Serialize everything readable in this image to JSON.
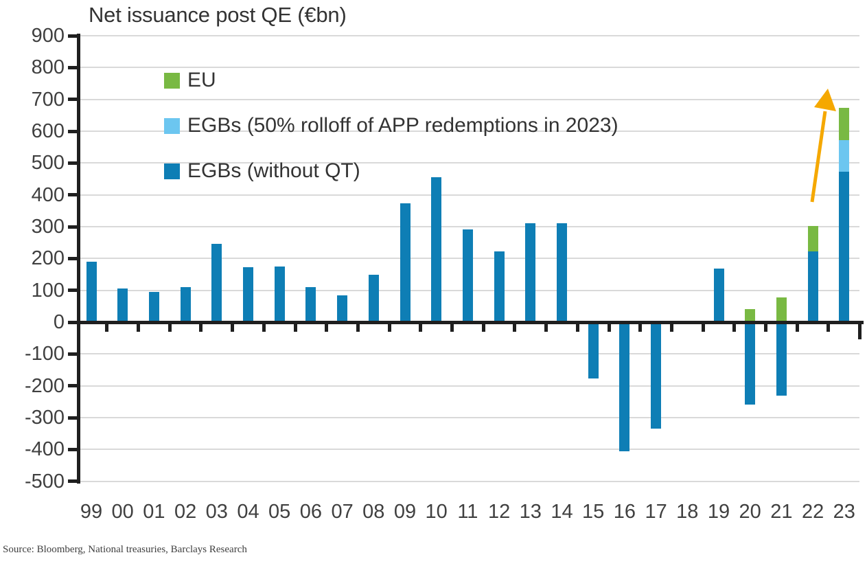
{
  "chart": {
    "title": "Net issuance post QE (€bn)",
    "source": "Source: Bloomberg, National treasuries, Barclays Research",
    "legend": [
      {
        "label": "EU",
        "color_key": "eu"
      },
      {
        "label": "EGBs (50% rolloff of APP redemptions in 2023)",
        "color_key": "app"
      },
      {
        "label": "EGBs (without QT)",
        "color_key": "egb"
      }
    ],
    "colors": {
      "eu": "#79b943",
      "app": "#6cc6f0",
      "egb": "#0e7eb5",
      "arrow": "#f5a800",
      "grid": "#d9d9d9",
      "axis": "#1f1f1f",
      "label": "#404040",
      "source_text": "#3f3f3f"
    }
  },
  "chart_data": {
    "type": "bar",
    "stacked": true,
    "title": "Net issuance post QE (€bn)",
    "xlabel": "",
    "ylabel": "",
    "ylim": [
      -500,
      900
    ],
    "ytick_step": 100,
    "grid": true,
    "legend_position": "upper-left-inside",
    "categories": [
      "99",
      "00",
      "01",
      "02",
      "03",
      "04",
      "05",
      "06",
      "07",
      "08",
      "09",
      "10",
      "11",
      "12",
      "13",
      "14",
      "15",
      "16",
      "17",
      "18",
      "19",
      "20",
      "21",
      "22",
      "23"
    ],
    "series": [
      {
        "name": "EGBs (without QT)",
        "color_key": "egb",
        "values": [
          190,
          105,
          95,
          110,
          245,
          172,
          175,
          110,
          85,
          150,
          373,
          455,
          292,
          222,
          310,
          311,
          -178,
          -405,
          -335,
          0,
          168,
          -258,
          -230,
          222,
          473
        ]
      },
      {
        "name": "EGBs (50% rolloff of APP redemptions in 2023)",
        "color_key": "app",
        "values": [
          0,
          0,
          0,
          0,
          0,
          0,
          0,
          0,
          0,
          0,
          0,
          0,
          0,
          0,
          0,
          0,
          0,
          0,
          0,
          0,
          0,
          0,
          0,
          0,
          100
        ]
      },
      {
        "name": "EU",
        "color_key": "eu",
        "values": [
          0,
          0,
          0,
          0,
          0,
          0,
          0,
          0,
          0,
          0,
          0,
          0,
          0,
          0,
          0,
          0,
          0,
          0,
          0,
          0,
          0,
          40,
          78,
          80,
          100
        ]
      }
    ],
    "annotation": {
      "type": "arrow",
      "meaning": "surge in 2023 issuance",
      "color_key": "arrow"
    }
  }
}
